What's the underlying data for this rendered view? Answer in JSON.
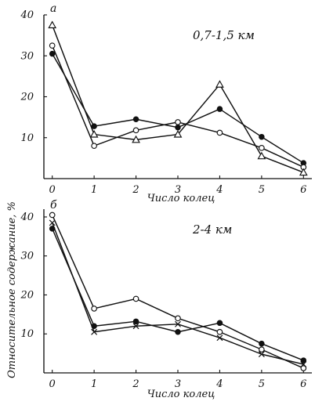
{
  "figure": {
    "y_axis_label": "Относительное содержание, %",
    "x_axis_label": "Число колец"
  },
  "chart_data": [
    {
      "type": "line",
      "panel_label": "а",
      "annotation": "0,7-1,5 км",
      "xlabel": "Число колец",
      "ylabel": "Относительное содержание, %",
      "x": [
        0,
        1,
        2,
        3,
        4,
        5,
        6
      ],
      "x_tick_labels": [
        "0",
        "1",
        "2",
        "3",
        "4",
        "5",
        "6"
      ],
      "y_ticks": [
        10,
        20,
        30,
        40
      ],
      "y_tick_labels": [
        "10",
        "20",
        "30",
        "40"
      ],
      "xlim": [
        -0.2,
        6.2
      ],
      "ylim": [
        0,
        40
      ],
      "grid": false,
      "series": [
        {
          "marker": "filled-circle",
          "values": [
            30.5,
            12.8,
            14.5,
            12.5,
            17.0,
            10.2,
            3.8
          ]
        },
        {
          "marker": "open-circle",
          "values": [
            32.5,
            8.0,
            11.8,
            13.8,
            11.2,
            7.5,
            2.8
          ]
        },
        {
          "marker": "open-triangle",
          "values": [
            37.5,
            10.8,
            9.5,
            10.8,
            23.0,
            5.5,
            1.5
          ]
        }
      ]
    },
    {
      "type": "line",
      "panel_label": "б",
      "annotation": "2-4 км",
      "xlabel": "Число колец",
      "ylabel": "Относительное содержание, %",
      "x": [
        0,
        1,
        2,
        3,
        4,
        5,
        6
      ],
      "x_tick_labels": [
        "0",
        "1",
        "2",
        "3",
        "4",
        "5",
        "6"
      ],
      "y_ticks": [
        10,
        20,
        30,
        40
      ],
      "y_tick_labels": [
        "10",
        "20",
        "30",
        "40"
      ],
      "xlim": [
        -0.2,
        6.2
      ],
      "ylim": [
        0,
        42
      ],
      "grid": false,
      "series": [
        {
          "marker": "filled-circle",
          "values": [
            37.0,
            12.0,
            13.2,
            10.5,
            12.8,
            7.5,
            3.2
          ]
        },
        {
          "marker": "open-circle",
          "values": [
            40.5,
            16.5,
            19.0,
            14.0,
            10.5,
            6.0,
            1.2
          ]
        },
        {
          "marker": "x",
          "values": [
            38.5,
            10.5,
            12.0,
            12.5,
            9.0,
            4.8,
            2.2
          ]
        }
      ]
    }
  ]
}
